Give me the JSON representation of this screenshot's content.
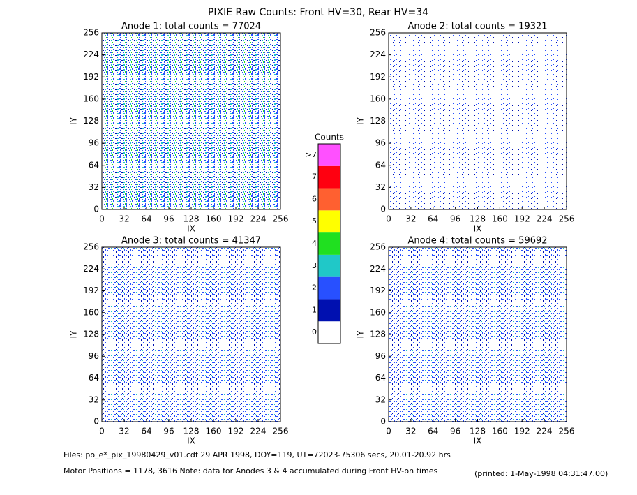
{
  "title": "PIXIE Raw Counts:  Front HV=30, Rear HV=34",
  "chart_data": [
    {
      "type": "heatmap",
      "title": "Anode 1: total counts = 77024",
      "x_label": "IX",
      "y_label": "IY",
      "xlim": [
        0,
        256
      ],
      "ylim": [
        0,
        256
      ],
      "xticks": [
        0,
        32,
        64,
        96,
        128,
        160,
        192,
        224,
        256
      ],
      "yticks": [
        0,
        32,
        64,
        96,
        128,
        160,
        192,
        224,
        256
      ]
    },
    {
      "type": "heatmap",
      "title": "Anode 2: total counts = 19321",
      "x_label": "IX",
      "y_label": "IY",
      "xlim": [
        0,
        256
      ],
      "ylim": [
        0,
        256
      ],
      "xticks": [
        0,
        32,
        64,
        96,
        128,
        160,
        192,
        224,
        256
      ],
      "yticks": [
        0,
        32,
        64,
        96,
        128,
        160,
        192,
        224,
        256
      ]
    },
    {
      "type": "heatmap",
      "title": "Anode 3: total counts = 41347",
      "x_label": "IX",
      "y_label": "IY",
      "xlim": [
        0,
        256
      ],
      "ylim": [
        0,
        256
      ],
      "xticks": [
        0,
        32,
        64,
        96,
        128,
        160,
        192,
        224,
        256
      ],
      "yticks": [
        0,
        32,
        64,
        96,
        128,
        160,
        192,
        224,
        256
      ]
    },
    {
      "type": "heatmap",
      "title": "Anode 4: total counts = 59692",
      "x_label": "IX",
      "y_label": "IY",
      "xlim": [
        0,
        256
      ],
      "ylim": [
        0,
        256
      ],
      "xticks": [
        0,
        32,
        64,
        96,
        128,
        160,
        192,
        224,
        256
      ],
      "yticks": [
        0,
        32,
        64,
        96,
        128,
        160,
        192,
        224,
        256
      ]
    }
  ],
  "colorbar": {
    "title": "Counts",
    "ticks": [
      0,
      1,
      2,
      3,
      4,
      5,
      6,
      7,
      {
        "value": 8,
        "label": ">7"
      }
    ],
    "colors": [
      "#ffffff",
      "#0010b0",
      "#2850ff",
      "#20c8c8",
      "#20e020",
      "#ffff00",
      "#ff6030",
      "#ff0010",
      "#ff50ff"
    ]
  },
  "footer": {
    "files": "Files: po_e*_pix_19980429_v01.cdf    29 APR 1998, DOY=119, UT=72023-75306 secs, 20.01-20.92 hrs",
    "motor": "Motor Positions = 1178, 3616    Note: data for Anodes 3 & 4 accumulated during Front HV-on times",
    "printed": "(printed:  1-May-1998 04:31:47.00)"
  }
}
